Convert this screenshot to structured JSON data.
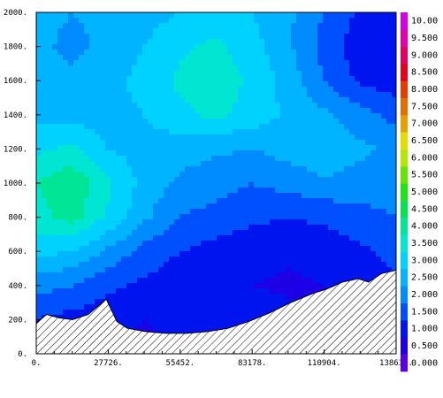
{
  "chart_data": {
    "type": "heatmap",
    "title": "",
    "xlabel": "",
    "ylabel": "",
    "xlim": [
      0,
      138630
    ],
    "ylim": [
      0,
      2000
    ],
    "x_tick_labels": [
      "0.",
      "27726.",
      "55452.",
      "83178.",
      "110904.",
      "138630."
    ],
    "x_tick_values": [
      0,
      27726,
      55452,
      83178,
      110904,
      138630
    ],
    "y_tick_labels": [
      "0.",
      "200.",
      "400.",
      "600.",
      "800.",
      "1000.",
      "1200.",
      "1400.",
      "1600.",
      "1800.",
      "2000."
    ],
    "y_tick_values": [
      0,
      200,
      400,
      600,
      800,
      1000,
      1200,
      1400,
      1600,
      1800,
      2000
    ],
    "colorbar": {
      "labels": [
        "0.000",
        "0.500",
        "1.000",
        "1.500",
        "2.000",
        "2.500",
        "3.000",
        "3.500",
        "4.000",
        "4.500",
        "5.000",
        "5.500",
        "6.000",
        "6.500",
        "7.000",
        "7.500",
        "8.000",
        "8.500",
        "9.000",
        "9.500",
        "10.00"
      ],
      "colors": [
        "#5a00e6",
        "#1e00e6",
        "#0014f0",
        "#0050ff",
        "#008cff",
        "#00b4ff",
        "#00d2ff",
        "#00e6d2",
        "#00e696",
        "#00e650",
        "#1ee614",
        "#64e600",
        "#b4e600",
        "#e6dc00",
        "#e6a000",
        "#e66e00",
        "#e63c00",
        "#e6001e",
        "#e60064",
        "#e600aa",
        "#d400e6"
      ]
    },
    "grid": false,
    "legend": "colorbar-right",
    "terrain_profile": {
      "x": [
        0,
        4000,
        9000,
        14000,
        20000,
        27000,
        31000,
        35000,
        42000,
        50000,
        58000,
        66000,
        74000,
        82000,
        90000,
        98000,
        106000,
        112000,
        118000,
        124000,
        128000,
        133000,
        138630
      ],
      "y": [
        180,
        230,
        210,
        200,
        230,
        320,
        190,
        150,
        130,
        120,
        120,
        130,
        150,
        190,
        240,
        300,
        350,
        380,
        420,
        440,
        420,
        470,
        490
      ]
    },
    "field_grid": {
      "note_x_step": 13863,
      "note_y_step": 200,
      "values": [
        [
          1.2,
          1.0,
          0.8,
          0.9,
          1.0,
          1.1,
          1.0,
          0.9,
          0.8,
          0.9,
          1.0
        ],
        [
          1.5,
          1.3,
          1.2,
          1.0,
          1.1,
          1.2,
          1.3,
          1.2,
          1.0,
          1.1,
          1.2
        ],
        [
          2.2,
          2.0,
          1.6,
          1.4,
          1.2,
          1.1,
          1.0,
          0.9,
          1.0,
          1.2,
          1.4
        ],
        [
          3.2,
          3.0,
          2.4,
          1.8,
          1.5,
          1.3,
          1.2,
          1.1,
          1.2,
          1.4,
          1.7
        ],
        [
          3.8,
          4.2,
          3.4,
          2.6,
          2.0,
          1.8,
          1.6,
          1.5,
          1.6,
          1.8,
          2.0
        ],
        [
          4.0,
          4.4,
          3.6,
          2.8,
          2.4,
          2.2,
          2.0,
          2.2,
          2.4,
          2.3,
          2.2
        ],
        [
          3.4,
          3.6,
          3.0,
          2.8,
          2.7,
          2.6,
          2.5,
          2.7,
          2.9,
          2.6,
          2.4
        ],
        [
          2.9,
          2.8,
          2.8,
          3.0,
          3.4,
          3.6,
          3.3,
          2.9,
          2.6,
          2.2,
          1.8
        ],
        [
          2.6,
          2.6,
          2.8,
          3.2,
          3.6,
          3.8,
          3.4,
          2.8,
          2.0,
          1.4,
          1.2
        ],
        [
          2.6,
          2.4,
          2.6,
          3.0,
          3.4,
          3.6,
          3.2,
          2.6,
          1.8,
          1.2,
          1.0
        ],
        [
          2.6,
          2.5,
          2.6,
          2.8,
          3.0,
          3.2,
          3.0,
          2.6,
          2.0,
          1.4,
          1.2
        ]
      ]
    }
  }
}
